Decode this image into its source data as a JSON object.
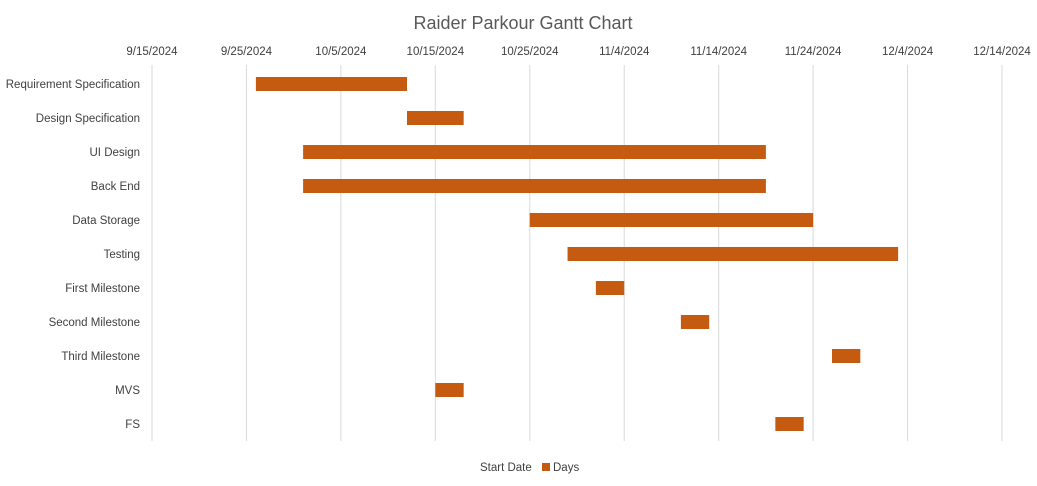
{
  "chart_data": {
    "type": "bar",
    "orientation": "horizontal",
    "stacked": true,
    "title": "Raider Parkour Gantt Chart",
    "x_axis_position": "top",
    "x_axis_format": "date",
    "xlim": [
      "2024-09-15",
      "2024-12-14"
    ],
    "x_ticks": [
      "9/15/2024",
      "9/25/2024",
      "10/5/2024",
      "10/15/2024",
      "10/25/2024",
      "11/4/2024",
      "11/14/2024",
      "11/24/2024",
      "12/4/2024",
      "12/14/2024"
    ],
    "gridlines": "vertical",
    "categories": [
      "Requirement Specification",
      "Design Specification",
      "UI Design",
      "Back End",
      "Data Storage",
      "Testing",
      "First Milestone",
      "Second Milestone",
      "Third Milestone",
      "MVS",
      "FS"
    ],
    "series": [
      {
        "name": "Start Date",
        "fill": "none",
        "values": [
          "2024-09-26",
          "2024-10-12",
          "2024-10-01",
          "2024-10-01",
          "2024-10-25",
          "2024-10-29",
          "2024-11-01",
          "2024-11-10",
          "2024-11-26",
          "2024-10-15",
          "2024-11-20"
        ]
      },
      {
        "name": "Days",
        "color": "#C55A11",
        "values": [
          16,
          6,
          49,
          49,
          30,
          35,
          3,
          3,
          3,
          3,
          3
        ]
      }
    ],
    "legend_position": "bottom"
  }
}
